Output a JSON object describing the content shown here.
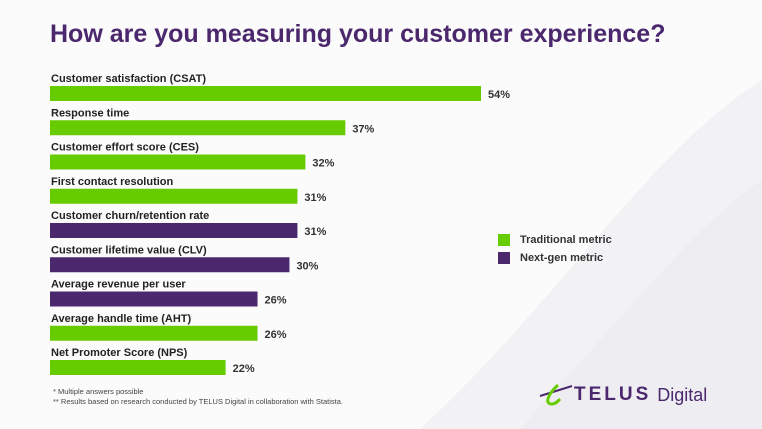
{
  "title": "How are you measuring your customer experience?",
  "colors": {
    "traditional": "#66cc00",
    "nextgen": "#4b286d"
  },
  "legend": [
    {
      "label": "Traditional metric",
      "color": "#66cc00"
    },
    {
      "label": "Next-gen metric",
      "color": "#4b286d"
    }
  ],
  "notes": [
    "* Multiple answers possible",
    "** Results based on research conducted by TELUS Digital in collaboration with Statista."
  ],
  "logo": {
    "brand": "TELUS",
    "suffix": "Digital"
  },
  "chart_data": {
    "type": "bar",
    "orientation": "horizontal",
    "title": "How are you measuring your customer experience?",
    "categories": [
      "Customer satisfaction (CSAT)",
      "Response time",
      "Customer effort score (CES)",
      "First contact resolution",
      "Customer churn/retention rate",
      "Customer lifetime value (CLV)",
      "Average revenue per user",
      "Average handle time (AHT)",
      "Net Promoter Score (NPS)"
    ],
    "values": [
      54,
      37,
      32,
      31,
      31,
      30,
      26,
      26,
      22
    ],
    "value_labels": [
      "54%",
      "37%",
      "32%",
      "31%",
      "31%",
      "30%",
      "26%",
      "26%",
      "22%"
    ],
    "metric_type": [
      "Traditional metric",
      "Traditional metric",
      "Traditional metric",
      "Traditional metric",
      "Next-gen metric",
      "Next-gen metric",
      "Next-gen metric",
      "Traditional metric",
      "Traditional metric"
    ],
    "unit": "%",
    "grid": false,
    "legend_position": "right"
  }
}
